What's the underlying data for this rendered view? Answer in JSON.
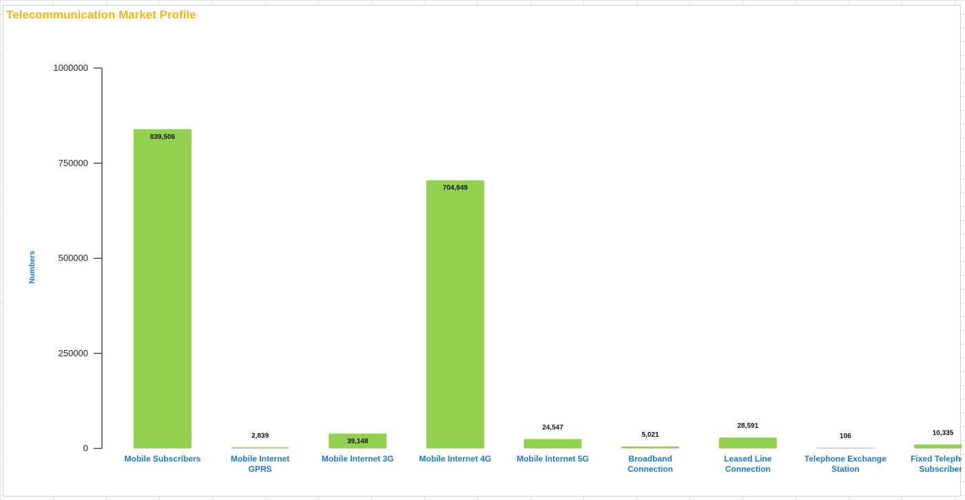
{
  "chart_data": {
    "type": "bar",
    "title": "Telecommunication Market Profile",
    "ylabel": "Numbers",
    "xlabel": "",
    "ylim": [
      0,
      1000000
    ],
    "yticks": [
      0,
      250000,
      500000,
      750000,
      1000000
    ],
    "ytick_labels": [
      "0",
      "250000",
      "500000",
      "750000",
      "1000000"
    ],
    "grid": false,
    "legend": "none",
    "bar_color": "#92d050",
    "title_color": "#f4b41c",
    "label_color": "#1a7ac8",
    "categories": [
      [
        "Mobile Subscribers"
      ],
      [
        "Mobile Internet",
        "GPRS"
      ],
      [
        "Mobile Internet 3G"
      ],
      [
        "Mobile Internet 4G"
      ],
      [
        "Mobile Internet 5G"
      ],
      [
        "Broadband",
        "Connection"
      ],
      [
        "Leased Line",
        "Connection"
      ],
      [
        "Telephone Exchange",
        "Station"
      ],
      [
        "Fixed Telephone",
        "Subscribers"
      ]
    ],
    "values": [
      839506,
      2839,
      39148,
      704949,
      24547,
      5021,
      28591,
      106,
      10335
    ],
    "data_labels": [
      "839,506",
      "2,839",
      "39,148",
      "704,949",
      "24,547",
      "5,021",
      "28,591",
      "106",
      "10,335"
    ]
  }
}
